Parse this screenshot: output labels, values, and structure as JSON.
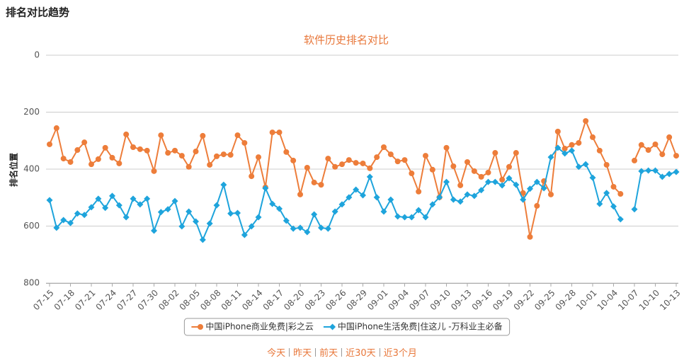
{
  "page_heading": "排名对比趋势",
  "chart_data": {
    "type": "line",
    "title": "软件历史排名对比",
    "y_label": "排名位置",
    "categories": [
      "07-15",
      null,
      null,
      "07-18",
      null,
      null,
      "07-21",
      null,
      null,
      "07-24",
      null,
      null,
      "07-27",
      null,
      null,
      "07-30",
      null,
      null,
      "08-02",
      null,
      null,
      "08-05",
      null,
      null,
      "08-08",
      null,
      null,
      "08-11",
      null,
      null,
      "08-14",
      null,
      null,
      "08-17",
      null,
      null,
      "08-20",
      null,
      null,
      "08-23",
      null,
      null,
      "08-26",
      null,
      null,
      "08-29",
      null,
      null,
      "09-01",
      null,
      null,
      "09-04",
      null,
      null,
      "09-07",
      null,
      null,
      "09-10",
      null,
      null,
      "09-13",
      null,
      null,
      "09-16",
      null,
      null,
      "09-19",
      null,
      null,
      "09-22",
      null,
      null,
      "09-25",
      null,
      null,
      "09-28",
      null,
      null,
      "10-01",
      null,
      null,
      "10-04",
      null,
      null,
      "10-07",
      null,
      null,
      "10-10",
      null,
      null,
      "10-13"
    ],
    "series": [
      {
        "name": "中国iPhone商业免费|彩之云",
        "color": "#ed7d3a",
        "marker": "circle",
        "values": [
          313,
          256,
          363,
          375,
          333,
          306,
          383,
          365,
          325,
          360,
          380,
          278,
          323,
          330,
          335,
          407,
          281,
          343,
          335,
          353,
          392,
          338,
          283,
          385,
          355,
          348,
          350,
          281,
          308,
          425,
          358,
          464,
          271,
          271,
          340,
          370,
          489,
          395,
          447,
          455,
          363,
          392,
          383,
          368,
          378,
          380,
          397,
          358,
          323,
          348,
          373,
          368,
          415,
          479,
          353,
          402,
          499,
          325,
          390,
          457,
          375,
          407,
          427,
          412,
          343,
          437,
          392,
          343,
          484,
          638,
          529,
          442,
          489,
          268,
          328,
          315,
          308,
          231,
          288,
          335,
          385,
          462,
          487,
          null,
          370,
          315,
          333,
          313,
          348,
          288,
          353
        ]
      },
      {
        "name": "中国iPhone生活免费|住这儿 -万科业主必备",
        "color": "#1ea4dc",
        "marker": "diamond",
        "values": [
          509,
          606,
          579,
          589,
          556,
          561,
          534,
          504,
          536,
          494,
          527,
          569,
          504,
          524,
          504,
          616,
          551,
          541,
          512,
          601,
          549,
          584,
          648,
          591,
          527,
          455,
          556,
          554,
          631,
          601,
          569,
          467,
          522,
          539,
          581,
          609,
          606,
          621,
          559,
          606,
          609,
          549,
          524,
          499,
          472,
          492,
          427,
          499,
          549,
          507,
          566,
          569,
          569,
          544,
          569,
          524,
          499,
          445,
          507,
          514,
          489,
          494,
          474,
          445,
          445,
          457,
          432,
          455,
          507,
          469,
          445,
          467,
          358,
          325,
          345,
          335,
          392,
          383,
          430,
          522,
          484,
          531,
          576,
          null,
          541,
          407,
          405,
          405,
          427,
          417,
          410
        ]
      }
    ],
    "ylim": [
      0,
      800
    ],
    "yticks": [
      0,
      200,
      400,
      600,
      800
    ],
    "y_inverted": true,
    "grid": true,
    "legend": "bottom"
  },
  "links": [
    "今天",
    "昨天",
    "前天",
    "近30天",
    "近3个月"
  ]
}
